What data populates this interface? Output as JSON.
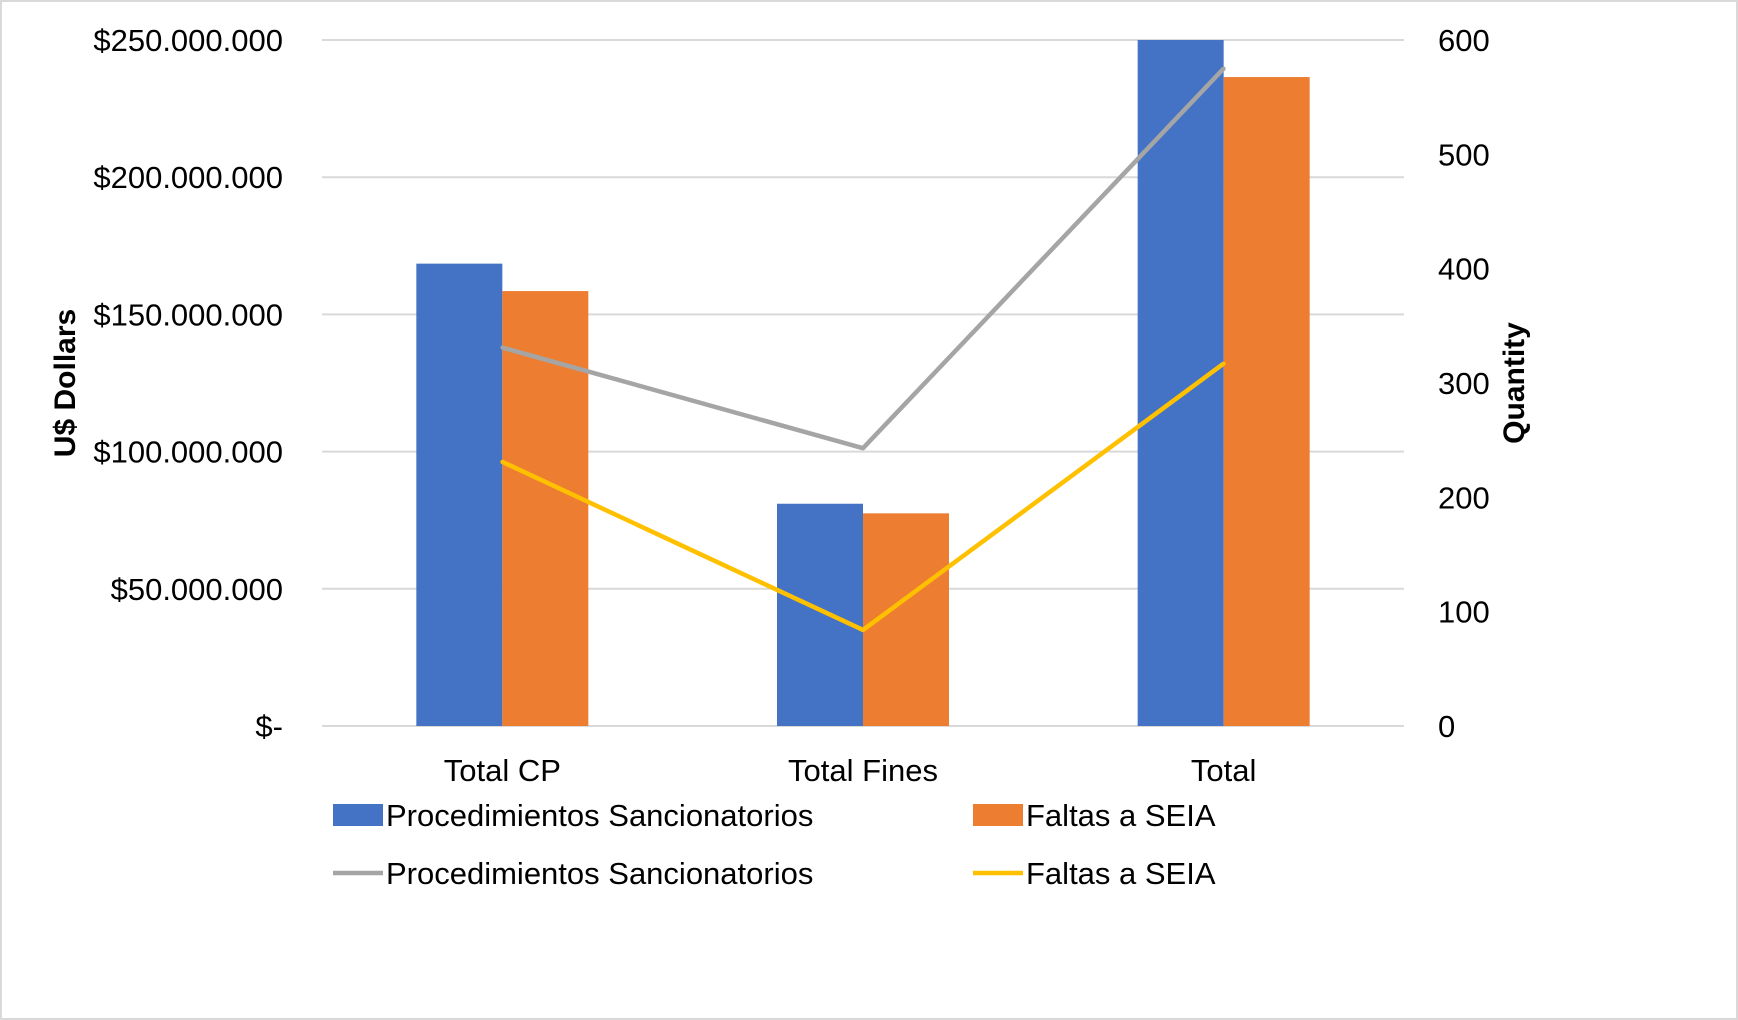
{
  "chart_data": {
    "type": "bar",
    "categories": [
      "Total CP",
      "Total Fines",
      "Total"
    ],
    "y_left": {
      "label": "U$ Dollars",
      "range": [
        0,
        250000000
      ],
      "ticks": [
        0,
        50000000,
        100000000,
        150000000,
        200000000,
        250000000
      ],
      "tick_labels": [
        "$-",
        "$50.000.000",
        "$100.000.000",
        "$150.000.000",
        "$200.000.000",
        "$250.000.000"
      ]
    },
    "y_right": {
      "label": "Quantity",
      "range": [
        0,
        600
      ],
      "ticks": [
        0,
        100,
        200,
        300,
        400,
        500,
        600
      ],
      "tick_labels": [
        "0",
        "100",
        "200",
        "300",
        "400",
        "500",
        "600"
      ]
    },
    "bar_series": [
      {
        "name": "Procedimientos Sancionatorios",
        "color": "#4472C4",
        "values": [
          168500000,
          81000000,
          250000000
        ]
      },
      {
        "name": "Faltas a SEIA",
        "color": "#ED7D31",
        "values": [
          158500000,
          77500000,
          236500000
        ]
      }
    ],
    "line_series": [
      {
        "name": "Procedimientos Sancionatorios",
        "color": "#A5A5A5",
        "values": [
          331,
          243,
          575
        ]
      },
      {
        "name": "Faltas a SEIA",
        "color": "#FFC000",
        "values": [
          231,
          84,
          317
        ]
      }
    ],
    "grid": true,
    "legend_position": "bottom"
  }
}
